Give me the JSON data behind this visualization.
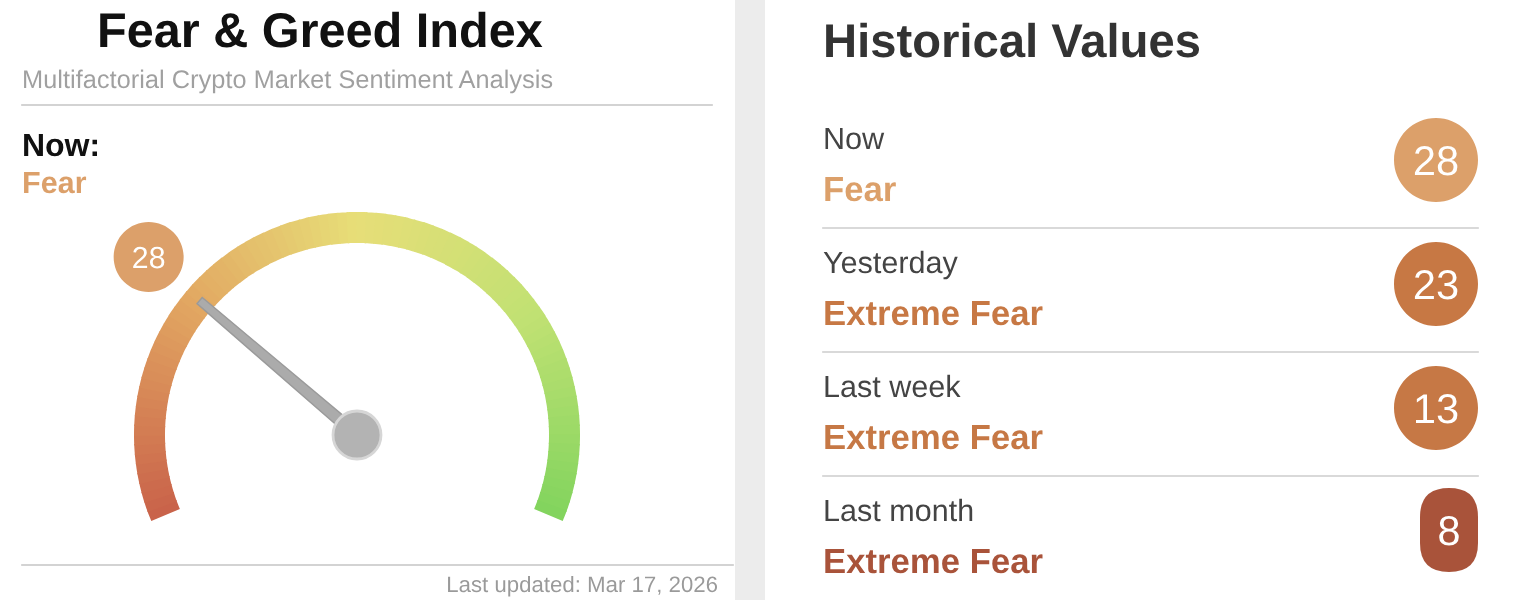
{
  "chart_data": [
    {
      "type": "other",
      "title": "Fear & Greed Index",
      "subtitle": "Multifactorial Crypto Market Sentiment Analysis",
      "values": [
        28
      ],
      "colors": [
        "#dca06a"
      ],
      "data_labels": true,
      "annotations": [
        "Now:",
        "Fear",
        "Last updated: Mar 17, 2026"
      ]
    },
    {
      "type": "other",
      "title": "Historical Values",
      "categories": [
        "Now",
        "Yesterday",
        "Last week",
        "Last month"
      ],
      "values": [
        28,
        23,
        13,
        8
      ],
      "colors": [
        "#dca06a",
        "#c77844",
        "#c67845",
        "#a9533a"
      ],
      "data_labels": true,
      "annotations": [
        "Fear",
        "Extreme Fear",
        "Extreme Fear",
        "Extreme Fear"
      ]
    }
  ]
}
